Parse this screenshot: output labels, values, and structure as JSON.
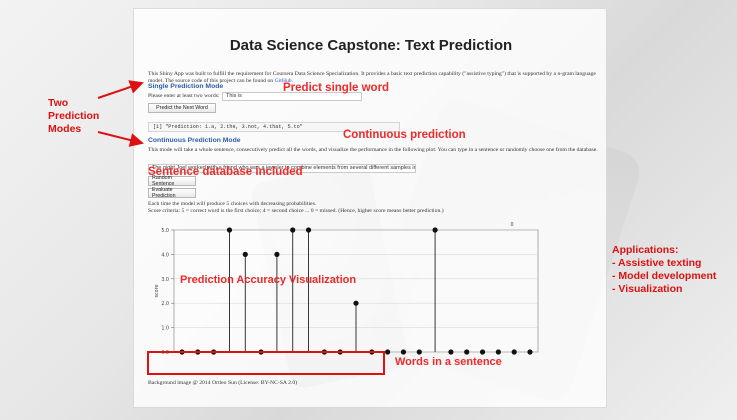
{
  "app": {
    "title": "Data Science Capstone: Text Prediction",
    "intro_text": "This Shiny App was built to fulfill the requirement for Coursera Data Science Specialization. It provides a basic text prediction capability (\"assistive typing\") that is supported by a n-gram language model. The source code of this project can be found on ",
    "intro_link": "GitHub.",
    "single": {
      "title": "Single Prediction Mode",
      "prompt": "Please enter at least two words:",
      "input_value": "This is",
      "button": "Predict the Next Word",
      "output": "[1] \"Prediction: 1.a, 2.the, 3.not, 4.that, 5.to\""
    },
    "continuous": {
      "title": "Continuous Prediction Mode",
      "desc": "This mode will take a whole sentence, consecutively predict all the words, and visualize the performance in the following plot. You can type in a sentence or randomly choose one from the database.",
      "input_value": "The night Joel worked with a friend who was a jeweler to combine elements from several different samples into one engagement right",
      "button_random": "Random Sentence",
      "button_evaluate": "Evaluate Prediction",
      "note1": "Each time the model will produce 5 choices with decreasing probabilities.",
      "note2": "Score criteria: 5 = correct word is the first choice; 4 = second choice ... 0 = missed. (Hence, higher score means better prediction.)"
    },
    "footer": "Background image @ 2014 Ortleo Sun (License: BY-NC-SA 2.0)"
  },
  "annotations": {
    "two_modes": [
      "Two",
      "Prediction",
      "Modes"
    ],
    "single_word": "Predict single word",
    "continuous": "Continuous prediction",
    "database": "Sentence database included",
    "viz": "Prediction Accuracy Visualization",
    "words": "Words in a sentence",
    "applications_title": "Applications:",
    "applications": [
      "- Assistive texting",
      "- Model development",
      "- Visualization"
    ]
  },
  "chart_data": {
    "type": "scatter",
    "title": "",
    "xlabel": "",
    "ylabel": "score",
    "ylim": [
      0,
      5
    ],
    "y_ticks": [
      "0.0",
      "1.0",
      "2.0",
      "3.0",
      "4.0",
      "5.0"
    ],
    "top_label": "0",
    "x_count": 23,
    "values": [
      0,
      0,
      0,
      5,
      4,
      0,
      4,
      5,
      5,
      0,
      0,
      2,
      0,
      0,
      0,
      0,
      5,
      0,
      0,
      0,
      0,
      0,
      0
    ]
  }
}
